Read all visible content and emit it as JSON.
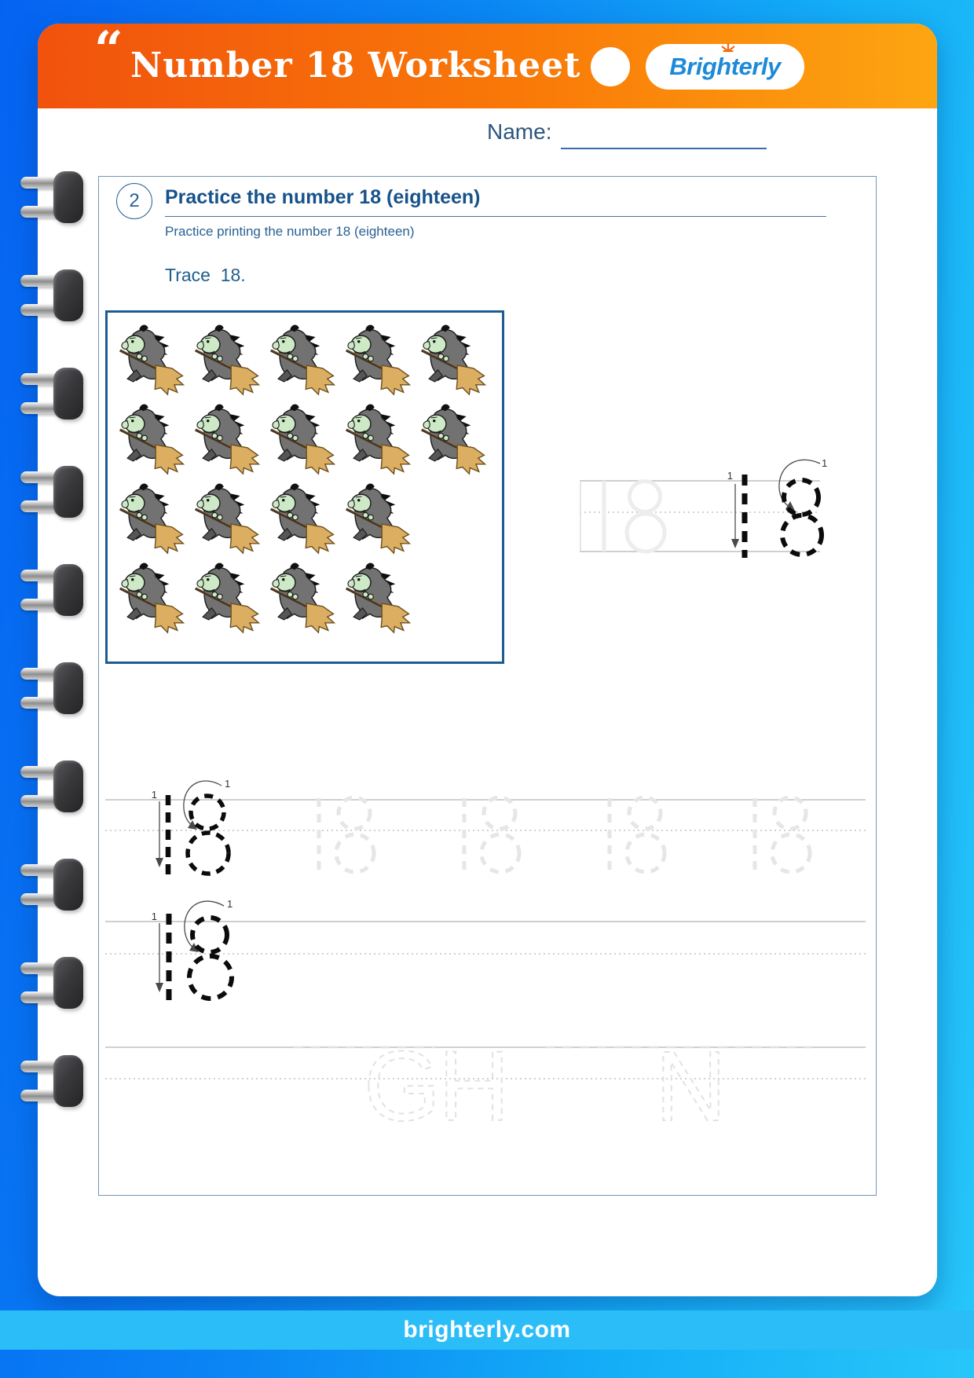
{
  "header": {
    "quote_mark": "“",
    "title": "Number 18 Worksheet",
    "brand": "Brighterly"
  },
  "name": {
    "label": "Name:"
  },
  "section": {
    "step_number": "2",
    "title": "Practice the number 18 (eighteen)",
    "subtitle": "Practice printing the number 18 (eighteen)",
    "trace_instruction": "Trace  18.",
    "traced_number": "18",
    "stroke_order_label": "1",
    "witches": {
      "rows": [
        5,
        5,
        4,
        4
      ],
      "total": 18,
      "icon": "witch-on-broom"
    },
    "practice_row_1_faded_count": 4,
    "faint_letters": [
      "G",
      "H",
      "N"
    ]
  },
  "footer": {
    "url": "brighterly.com"
  },
  "colors": {
    "background_blue_start": "#0563f2",
    "background_blue_end": "#27c6fa",
    "banner_orange_start": "#f1520d",
    "banner_orange_end": "#fda511",
    "heading_blue": "#17528b",
    "logo_blue": "#1d8ad8",
    "logo_sun_orange": "#f26a10",
    "footer_band_blue": "#2abdf8"
  }
}
